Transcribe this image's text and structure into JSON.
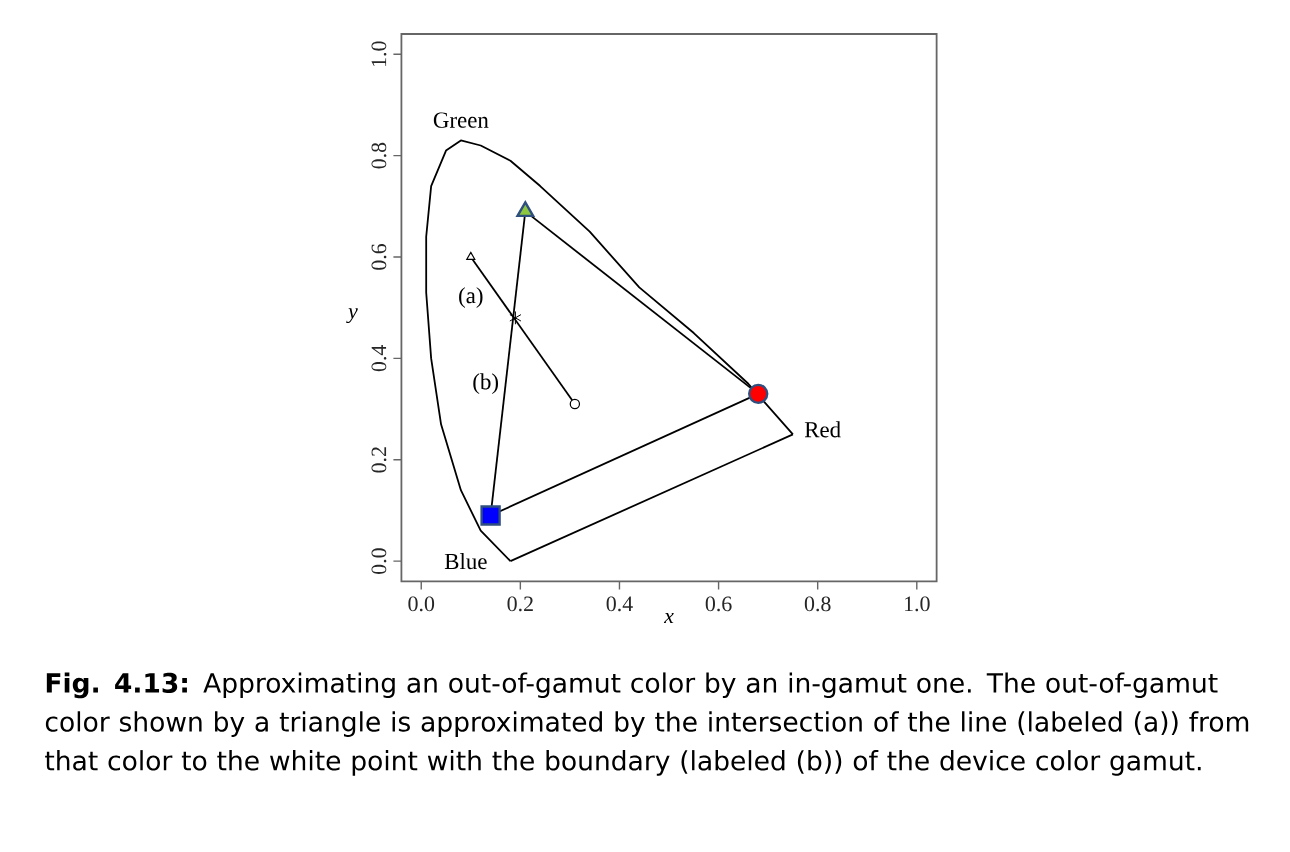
{
  "chart_data": {
    "type": "line",
    "xlabel": "x",
    "ylabel": "y",
    "xlim": [
      -0.04,
      1.04
    ],
    "ylim": [
      -0.04,
      1.04
    ],
    "xticks": [
      {
        "value": 0,
        "label": "0.0"
      },
      0.2,
      0.4,
      0.6,
      0.8,
      {
        "value": 1,
        "label": "1.0"
      }
    ],
    "yticks": [
      {
        "value": 0,
        "label": "0.0"
      },
      0.2,
      0.4,
      0.6,
      0.8,
      {
        "value": 1,
        "label": "1.0"
      }
    ],
    "grid": false,
    "series": [
      {
        "color": "#000000",
        "x": [
          0.18,
          0.12,
          0.08,
          0.04,
          0.02,
          0.01,
          0.01,
          0.02,
          0.05,
          0.08,
          0.12,
          0.18,
          0.24,
          0.34,
          0.44,
          0.55,
          0.66,
          0.75
        ],
        "values": [
          0.0,
          0.06,
          0.14,
          0.27,
          0.4,
          0.53,
          0.64,
          0.74,
          0.81,
          0.83,
          0.82,
          0.79,
          0.74,
          0.65,
          0.54,
          0.45,
          0.35,
          0.25
        ]
      },
      {
        "color": "#000000",
        "x": [
          0.18,
          0.75
        ],
        "values": [
          0.0,
          0.25
        ]
      },
      {
        "color": "#000000",
        "x": [
          0.14,
          0.21
        ],
        "values": [
          0.09,
          0.69
        ]
      },
      {
        "color": "#000000",
        "x": [
          0.21,
          0.68
        ],
        "values": [
          0.69,
          0.33
        ]
      },
      {
        "color": "#000000",
        "x": [
          0.14,
          0.68
        ],
        "values": [
          0.09,
          0.33
        ]
      },
      {
        "color": "#000000",
        "x": [
          0.1,
          0.31
        ],
        "values": [
          0.6,
          0.31
        ]
      },
      {
        "type": "scatter",
        "marker": "triangle",
        "color": "#8dc63f",
        "x": [
          0.21
        ],
        "values": [
          0.69
        ]
      },
      {
        "type": "scatter",
        "marker": "circle",
        "color": "#ff0000",
        "x": [
          0.68
        ],
        "values": [
          0.33
        ]
      },
      {
        "type": "scatter",
        "marker": "square",
        "color": "#0000ff",
        "x": [
          0.14
        ],
        "values": [
          0.09
        ]
      },
      {
        "type": "scatter",
        "marker": "circle",
        "color": "#ffffff",
        "x": [
          0.31
        ],
        "values": [
          0.31
        ]
      },
      {
        "type": "scatter",
        "marker": "triangle",
        "color": "#ffffff",
        "x": [
          0.1
        ],
        "values": [
          0.6
        ]
      },
      {
        "type": "scatter",
        "marker": "cross",
        "color": "#000000",
        "x": [
          0.19
        ],
        "values": [
          0.48
        ]
      }
    ],
    "annotations": [
      "Green",
      "Red",
      "Blue",
      "(a)",
      "(b)",
      "**Fig. 4.13:** Approximating an out-of-gamut color by an in-gamut one. The out-of-gamut color shown by a triangle is approximated by the intersection of the line (labeled (a)) from that color to the white point with the boundary (labeled (b)) of the device color gamut."
    ]
  }
}
